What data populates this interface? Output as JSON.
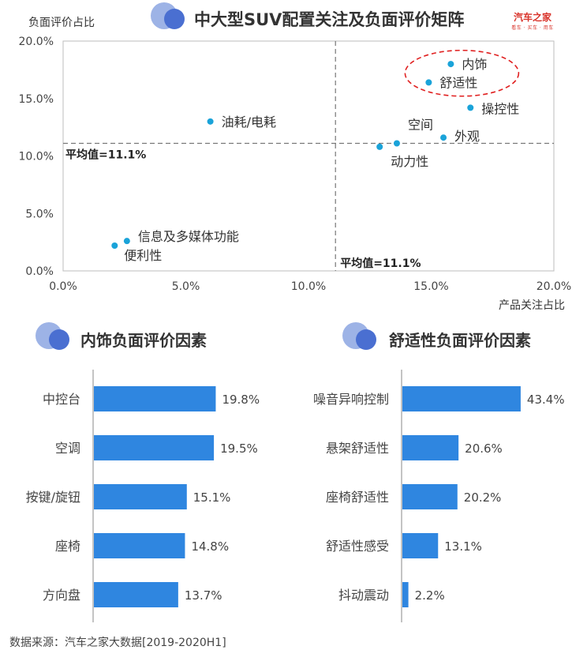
{
  "header": {
    "title": "中大型SUV配置关注及负面评价矩阵",
    "brand_name": "汽车之家",
    "brand_tagline": "看车 · 买车 · 用车"
  },
  "colors": {
    "accent": "#2f86e0",
    "dot": "#1aa3d9",
    "highlight_ellipse": "#e02020",
    "logo_light": "#9db3e6",
    "logo_dark": "#4a6fd1"
  },
  "chart_data": [
    {
      "type": "scatter",
      "title": "中大型SUV配置关注及负面评价矩阵",
      "xlabel": "产品关注占比",
      "ylabel": "负面评价占比",
      "xlim": [
        0,
        20
      ],
      "ylim": [
        0,
        20
      ],
      "x_ticks": [
        "0.0%",
        "5.0%",
        "10.0%",
        "15.0%",
        "20.0%"
      ],
      "y_ticks": [
        "0.0%",
        "5.0%",
        "10.0%",
        "15.0%",
        "20.0%"
      ],
      "reference_lines": [
        {
          "axis": "x",
          "value": 11.1,
          "label": "平均值=11.1%"
        },
        {
          "axis": "y",
          "value": 11.1,
          "label": "平均值=11.1%"
        }
      ],
      "highlighted": [
        "内饰",
        "舒适性"
      ],
      "points": [
        {
          "label": "内饰",
          "x": 15.8,
          "y": 18.0
        },
        {
          "label": "舒适性",
          "x": 14.9,
          "y": 16.4
        },
        {
          "label": "操控性",
          "x": 16.6,
          "y": 14.2
        },
        {
          "label": "外观",
          "x": 15.5,
          "y": 11.6
        },
        {
          "label": "空间",
          "x": 13.6,
          "y": 11.1
        },
        {
          "label": "动力性",
          "x": 12.9,
          "y": 10.8
        },
        {
          "label": "油耗/电耗",
          "x": 6.0,
          "y": 13.0
        },
        {
          "label": "信息及多媒体功能",
          "x": 2.6,
          "y": 2.6
        },
        {
          "label": "便利性",
          "x": 2.1,
          "y": 2.2
        }
      ]
    },
    {
      "type": "bar",
      "orientation": "horizontal",
      "title": "内饰负面评价因素",
      "categories": [
        "中控台",
        "空调",
        "按键/旋钮",
        "座椅",
        "方向盘"
      ],
      "values": [
        19.8,
        19.5,
        15.1,
        14.8,
        13.7
      ],
      "value_labels": [
        "19.8%",
        "19.5%",
        "15.1%",
        "14.8%",
        "13.7%"
      ],
      "xlim": [
        0,
        25
      ]
    },
    {
      "type": "bar",
      "orientation": "horizontal",
      "title": "舒适性负面评价因素",
      "categories": [
        "噪音异响控制",
        "悬架舒适性",
        "座椅舒适性",
        "舒适性感受",
        "抖动震动"
      ],
      "values": [
        43.4,
        20.6,
        20.2,
        13.1,
        2.2
      ],
      "value_labels": [
        "43.4%",
        "20.6%",
        "20.2%",
        "13.1%",
        "2.2%"
      ],
      "xlim": [
        0,
        55
      ]
    }
  ],
  "footer": {
    "source": "数据来源：汽车之家大数据[2019-2020H1]"
  }
}
